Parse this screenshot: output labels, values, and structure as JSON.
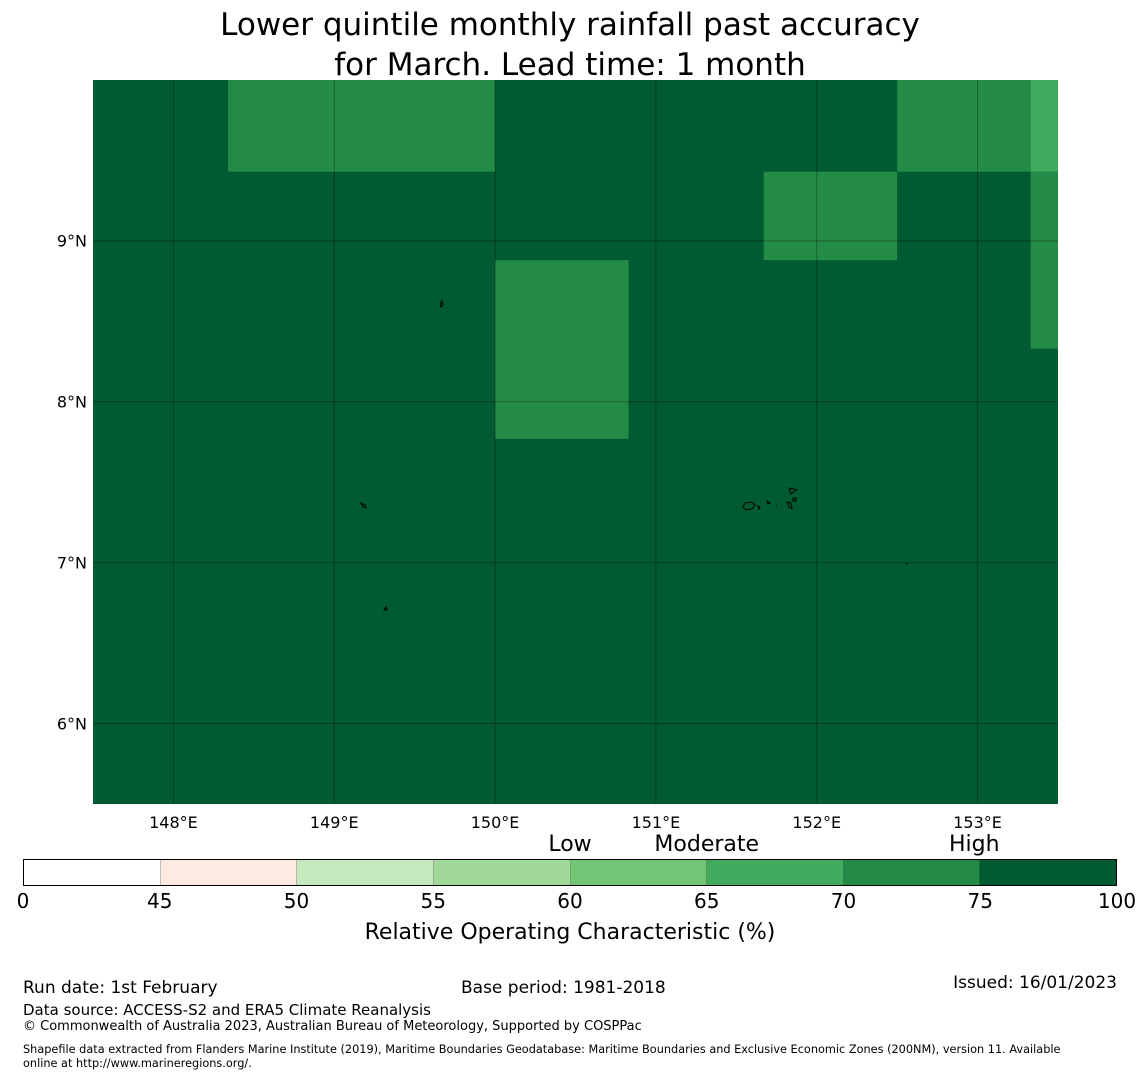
{
  "title_line1": "Lower quintile monthly rainfall past accuracy",
  "title_line2": "for March. Lead time: 1 month",
  "map": {
    "extent": {
      "lon_min": 147.5,
      "lon_max": 153.5,
      "lat_min": 5.5,
      "lat_max": 10.0
    },
    "background_color": "#005a32",
    "lon_ticks": [
      {
        "value": 148,
        "label": "148°E"
      },
      {
        "value": 149,
        "label": "149°E"
      },
      {
        "value": 150,
        "label": "150°E"
      },
      {
        "value": 151,
        "label": "151°E"
      },
      {
        "value": 152,
        "label": "152°E"
      },
      {
        "value": 153,
        "label": "153°E"
      }
    ],
    "lat_ticks": [
      {
        "value": 9,
        "label": "9°N"
      },
      {
        "value": 8,
        "label": "8°N"
      },
      {
        "value": 7,
        "label": "7°N"
      },
      {
        "value": 6,
        "label": "6°N"
      }
    ],
    "cells": [
      {
        "lon0": 148.34,
        "lon1": 150.0,
        "lat0": 9.43,
        "lat1": 10.0,
        "category": "70-75",
        "color": "#238b45"
      },
      {
        "lon0": 152.5,
        "lon1": 153.33,
        "lat0": 9.43,
        "lat1": 10.0,
        "category": "70-75",
        "color": "#238b45"
      },
      {
        "lon0": 153.33,
        "lon1": 153.5,
        "lat0": 9.43,
        "lat1": 10.0,
        "category": "65-70",
        "color": "#41ab5d"
      },
      {
        "lon0": 151.67,
        "lon1": 152.5,
        "lat0": 8.88,
        "lat1": 9.43,
        "category": "70-75",
        "color": "#238b45"
      },
      {
        "lon0": 153.33,
        "lon1": 153.5,
        "lat0": 8.33,
        "lat1": 9.43,
        "category": "70-75",
        "color": "#238b45"
      },
      {
        "lon0": 150.0,
        "lon1": 150.83,
        "lat0": 7.77,
        "lat1": 8.88,
        "category": "70-75",
        "color": "#238b45"
      }
    ]
  },
  "colorbar": {
    "ticks": [
      "0",
      "45",
      "50",
      "55",
      "60",
      "65",
      "70",
      "75",
      "100"
    ],
    "colors": [
      "#ffffff",
      "#feeae0",
      "#c7e9c0",
      "#a1d99b",
      "#74c476",
      "#41ab5d",
      "#238b45",
      "#005a32"
    ],
    "category_labels": [
      {
        "label": "Low",
        "at": 4
      },
      {
        "label": "Moderate",
        "at": 5
      },
      {
        "label": "High",
        "at": 7
      }
    ],
    "xlabel": "Relative Operating Characteristic (%)"
  },
  "footer": {
    "run_date": "Run date: 1st February",
    "base_period": "Base period: 1981-2018",
    "issued": "Issued: 16/01/2023",
    "data_source": "Data source: ACCESS-S2 and ERA5 Climate Reanalysis",
    "copyright": "© Commonwealth of Australia 2023, Australian Bureau of Meteorology, Supported by COSPPac",
    "shapefile_line1": "Shapefile data extracted from Flanders Marine Institute (2019), Maritime Boundaries Geodatabase: Maritime Boundaries and Exclusive Economic Zones (200NM), version 11. Available",
    "shapefile_line2": "online at http://www.marineregions.org/."
  }
}
